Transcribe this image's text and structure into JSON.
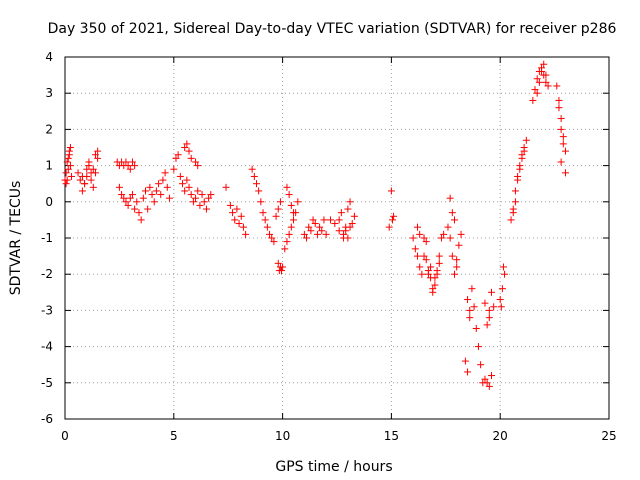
{
  "chart_data": {
    "type": "scatter",
    "title": "Day 350 of 2021, Sidereal Day-to-day VTEC variation (SDTVAR) for receiver p286",
    "xlabel": "GPS time / hours",
    "ylabel": "SDTVAR / TECUs",
    "xlim": [
      0,
      25
    ],
    "ylim": [
      -6,
      4
    ],
    "xticks": [
      0,
      5,
      10,
      15,
      20,
      25
    ],
    "yticks": [
      -6,
      -5,
      -4,
      -3,
      -2,
      -1,
      0,
      1,
      2,
      3,
      4
    ],
    "grid": true,
    "marker": "+",
    "color": "#ff0000",
    "series": [
      {
        "name": "SDTVAR",
        "x": [
          0.0,
          0.05,
          0.1,
          0.15,
          0.2,
          0.25,
          0.05,
          0.1,
          0.15,
          0.2,
          0.25,
          0.3,
          0.6,
          0.7,
          0.8,
          0.9,
          1.0,
          1.1,
          1.2,
          1.3,
          1.4,
          1.5,
          0.8,
          0.9,
          1.0,
          1.1,
          1.2,
          1.3,
          1.4,
          1.5,
          2.4,
          2.5,
          2.6,
          2.7,
          2.8,
          2.9,
          3.0,
          3.1,
          3.2,
          2.5,
          2.6,
          2.7,
          2.8,
          2.9,
          3.0,
          3.1,
          3.2,
          3.3,
          3.4,
          3.5,
          3.6,
          3.7,
          3.8,
          3.9,
          4.0,
          4.1,
          4.2,
          4.3,
          4.4,
          4.5,
          4.6,
          4.7,
          4.8,
          5.0,
          5.1,
          5.2,
          5.3,
          5.4,
          5.5,
          5.6,
          5.7,
          5.8,
          5.9,
          6.0,
          6.1,
          6.2,
          6.3,
          6.4,
          6.5,
          6.6,
          6.7,
          5.5,
          5.6,
          5.7,
          5.8,
          6.0,
          6.1,
          7.4,
          7.6,
          7.7,
          7.8,
          7.9,
          8.0,
          8.1,
          8.2,
          8.3,
          8.6,
          8.7,
          8.8,
          8.9,
          9.0,
          9.1,
          9.2,
          9.3,
          9.4,
          9.5,
          9.6,
          9.7,
          9.8,
          9.9,
          9.8,
          9.85,
          9.9,
          9.95,
          10.0,
          10.1,
          10.2,
          10.3,
          10.4,
          10.5,
          10.6,
          10.7,
          10.2,
          10.3,
          10.4,
          10.5,
          11.0,
          11.1,
          11.2,
          11.3,
          11.4,
          11.5,
          11.6,
          11.7,
          11.8,
          11.9,
          12.0,
          12.2,
          12.4,
          12.6,
          12.6,
          12.7,
          12.8,
          12.9,
          13.0,
          13.1,
          13.2,
          13.3,
          12.8,
          12.9,
          13.0,
          13.1,
          15.0,
          15.05,
          15.1,
          14.9,
          16.0,
          16.1,
          16.2,
          16.3,
          16.4,
          16.5,
          16.6,
          16.7,
          16.8,
          16.9,
          17.0,
          17.1,
          17.2,
          17.3,
          17.4,
          16.5,
          16.6,
          16.7,
          16.8,
          16.9,
          17.0,
          17.1,
          17.2,
          16.2,
          16.3,
          17.6,
          17.7,
          17.8,
          17.9,
          18.0,
          18.1,
          18.2,
          17.7,
          17.8,
          17.9,
          18.0,
          18.4,
          18.5,
          18.6,
          18.7,
          18.8,
          18.9,
          19.0,
          19.1,
          19.2,
          19.3,
          18.5,
          18.6,
          19.3,
          19.4,
          19.5,
          19.6,
          19.7,
          19.4,
          19.5,
          19.6,
          19.5,
          20.0,
          20.1,
          20.2,
          20.05,
          20.15,
          20.5,
          20.6,
          20.7,
          20.8,
          20.9,
          21.0,
          21.1,
          21.2,
          20.6,
          20.7,
          20.8,
          20.9,
          21.0,
          21.1,
          21.5,
          21.6,
          21.7,
          21.8,
          21.9,
          22.0,
          22.1,
          22.2,
          21.7,
          21.8,
          21.9,
          22.0,
          22.1,
          22.6,
          22.7,
          22.8,
          22.9,
          23.0,
          22.7,
          22.8,
          22.9,
          23.0,
          22.8
        ],
        "y": [
          0.6,
          0.8,
          1.1,
          1.2,
          1.4,
          1.5,
          0.5,
          0.6,
          0.9,
          1.3,
          1.0,
          0.7,
          0.8,
          0.6,
          0.7,
          0.5,
          0.9,
          1.0,
          0.6,
          0.4,
          0.8,
          1.2,
          0.3,
          0.5,
          0.7,
          1.1,
          0.8,
          0.9,
          1.3,
          1.4,
          1.1,
          1.0,
          1.1,
          1.0,
          1.1,
          1.0,
          0.9,
          1.1,
          1.0,
          0.4,
          0.2,
          0.1,
          0.0,
          -0.1,
          0.1,
          0.2,
          -0.2,
          0.0,
          -0.3,
          -0.5,
          0.1,
          0.3,
          -0.2,
          0.4,
          0.2,
          0.0,
          0.3,
          0.5,
          0.2,
          0.6,
          0.8,
          0.4,
          0.1,
          0.9,
          1.2,
          1.3,
          0.7,
          0.5,
          0.3,
          0.6,
          0.4,
          0.2,
          0.0,
          0.1,
          0.3,
          -0.1,
          0.2,
          0.0,
          -0.2,
          0.1,
          0.2,
          1.5,
          1.6,
          1.4,
          1.2,
          1.1,
          1.0,
          0.4,
          -0.1,
          -0.3,
          -0.5,
          -0.2,
          -0.6,
          -0.4,
          -0.7,
          -0.9,
          0.9,
          0.7,
          0.5,
          0.3,
          0.0,
          -0.3,
          -0.5,
          -0.7,
          -0.9,
          -1.0,
          -1.1,
          -0.4,
          -0.2,
          0.0,
          -1.7,
          -1.9,
          -1.8,
          -1.9,
          -1.8,
          -1.3,
          -1.1,
          -0.9,
          -0.7,
          -0.5,
          -0.3,
          0.0,
          0.4,
          0.2,
          -0.1,
          -0.3,
          -0.9,
          -1.0,
          -0.7,
          -0.8,
          -0.5,
          -0.6,
          -0.9,
          -0.7,
          -0.8,
          -0.5,
          -0.9,
          -0.5,
          -0.6,
          -0.8,
          -0.5,
          -0.3,
          -1.0,
          -0.7,
          -0.2,
          0.0,
          -0.6,
          -0.4,
          -0.9,
          -0.8,
          -1.0,
          -0.7,
          0.3,
          -0.5,
          -0.4,
          -0.7,
          -1.0,
          -1.3,
          -1.5,
          -1.8,
          -2.0,
          -1.5,
          -1.1,
          -1.9,
          -2.1,
          -2.5,
          -2.3,
          -2.0,
          -1.5,
          -1.0,
          -0.9,
          -1.0,
          -1.6,
          -2.0,
          -1.8,
          -2.4,
          -2.1,
          -1.9,
          -1.7,
          -0.7,
          -0.9,
          -0.7,
          -1.0,
          -1.5,
          -2.0,
          -1.6,
          -1.2,
          -0.9,
          0.1,
          -0.3,
          -0.5,
          -1.8,
          -4.4,
          -4.7,
          -3.0,
          -2.4,
          -2.9,
          -3.5,
          -4.0,
          -4.5,
          -5.0,
          -4.9,
          -2.7,
          -3.2,
          -2.8,
          -3.4,
          -3.0,
          -2.5,
          -2.9,
          -5.0,
          -5.1,
          -4.8,
          -3.2,
          -2.7,
          -2.4,
          -2.0,
          -2.9,
          -1.8,
          -0.5,
          -0.2,
          0.3,
          0.7,
          1.0,
          1.3,
          1.5,
          1.7,
          -0.3,
          0.0,
          0.6,
          0.9,
          1.2,
          1.4,
          2.8,
          3.1,
          3.4,
          3.6,
          3.7,
          3.5,
          3.3,
          3.2,
          3.0,
          3.3,
          3.6,
          3.8,
          3.5,
          3.2,
          2.8,
          2.3,
          1.8,
          1.4,
          2.6,
          2.0,
          1.6,
          0.8,
          1.1
        ]
      }
    ]
  }
}
